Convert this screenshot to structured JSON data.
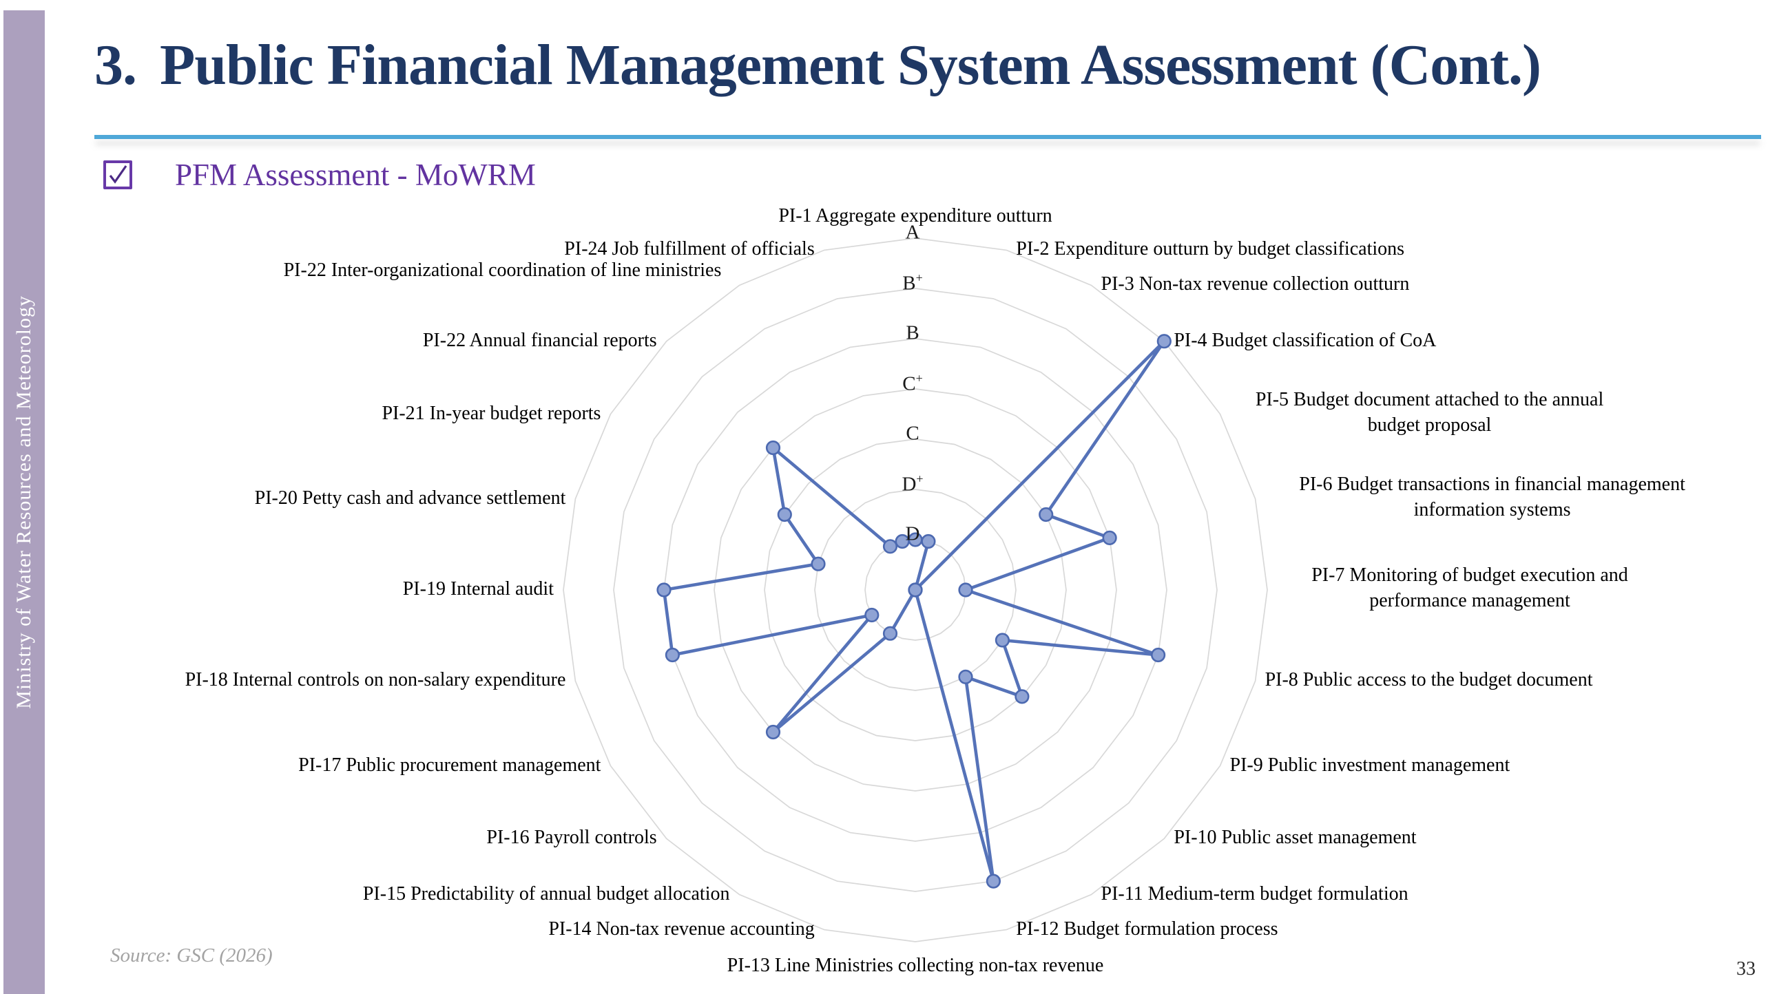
{
  "slide": {
    "title_number": "3.",
    "title": "Public Financial Management System Assessment (Cont.)",
    "subtitle": "PFM Assessment - MoWRM",
    "sidebar_text": "Ministry of Water Resources and Meteorology",
    "source": "Source: GSC (2026)",
    "page_number": "33"
  },
  "chart_data": {
    "type": "radar",
    "title": "PFM Assessment - MoWRM",
    "legend": "none",
    "grid": "polygonal-rings",
    "scale": {
      "min": 0,
      "max": 7,
      "rings": 7,
      "grades_inner_to_outer": [
        "D",
        "D+",
        "C",
        "C+",
        "B",
        "B+",
        "A"
      ],
      "note": "value 0 = no score (point at center); axes ordered clockwise from top"
    },
    "axes": [
      {
        "id": "pi-1",
        "label": "PI-1 Aggregate expenditure outturn",
        "grade": "D",
        "value": 1
      },
      {
        "id": "pi-2",
        "label": "PI-2 Expenditure outturn by budget classifications",
        "grade": "D",
        "value": 1
      },
      {
        "id": "pi-3",
        "label": "PI-3 Non-tax revenue collection outturn",
        "grade": null,
        "value": 0
      },
      {
        "id": "pi-4",
        "label": "PI-4 Budget classification of CoA",
        "grade": "A",
        "value": 7
      },
      {
        "id": "pi-5",
        "label": "PI-5 Budget document attached to the annual budget proposal",
        "grade": "C",
        "value": 3
      },
      {
        "id": "pi-6",
        "label": "PI-6 Budget transactions in financial management information systems",
        "grade": "C+",
        "value": 4
      },
      {
        "id": "pi-7",
        "label": "PI-7 Monitoring of budget execution and performance management",
        "grade": "D",
        "value": 1
      },
      {
        "id": "pi-8",
        "label": "PI-8 Public access to the budget document",
        "grade": "B",
        "value": 5
      },
      {
        "id": "pi-9",
        "label": "PI-9 Public investment management",
        "grade": "D+",
        "value": 2
      },
      {
        "id": "pi-10",
        "label": "PI-10 Public asset management",
        "grade": "C",
        "value": 3
      },
      {
        "id": "pi-11",
        "label": "PI-11 Medium-term budget formulation",
        "grade": "D+",
        "value": 2
      },
      {
        "id": "pi-12",
        "label": "PI-12 Budget formulation process",
        "grade": "B+",
        "value": 6
      },
      {
        "id": "pi-13",
        "label": "PI-13 Line Ministries collecting non-tax revenue",
        "grade": null,
        "value": 0
      },
      {
        "id": "pi-14",
        "label": "PI-14 Non-tax revenue accounting",
        "grade": null,
        "value": 0
      },
      {
        "id": "pi-15",
        "label": "PI-15 Predictability of annual budget allocation",
        "grade": "D",
        "value": 1
      },
      {
        "id": "pi-16",
        "label": "PI-16 Payroll controls",
        "grade": "C+",
        "value": 4
      },
      {
        "id": "pi-17",
        "label": "PI-17 Public procurement management",
        "grade": "D",
        "value": 1
      },
      {
        "id": "pi-18",
        "label": "PI-18 Internal controls on non-salary expenditure",
        "grade": "B",
        "value": 5
      },
      {
        "id": "pi-19",
        "label": "PI-19 Internal audit",
        "grade": "B",
        "value": 5
      },
      {
        "id": "pi-20",
        "label": "PI-20 Petty cash and advance settlement",
        "grade": "D+",
        "value": 2
      },
      {
        "id": "pi-21",
        "label": "PI-21 In-year budget reports",
        "grade": "C",
        "value": 3
      },
      {
        "id": "pi-22-annual",
        "label": "PI-22 Annual financial reports",
        "grade": "C+",
        "value": 4
      },
      {
        "id": "pi-22-inter",
        "label": "PI-22 Inter-organizational coordination of line ministries",
        "grade": "D",
        "value": 1
      },
      {
        "id": "pi-24",
        "label": "PI-24 Job fulfillment of officials",
        "grade": "D",
        "value": 1
      }
    ],
    "colors": {
      "series": "#5572B8",
      "marker_fill": "#8FA3D4",
      "marker_stroke": "#4C69B0",
      "grid": "#D8D8D8"
    }
  }
}
